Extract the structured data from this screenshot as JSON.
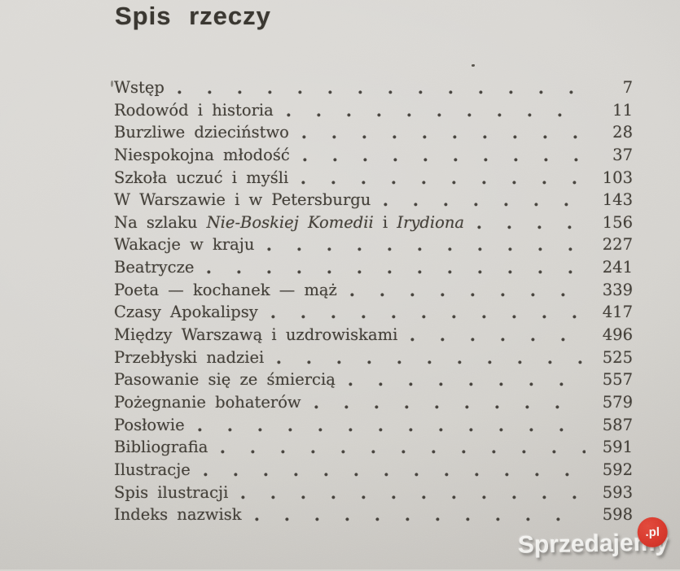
{
  "page": {
    "title": "Spis rzeczy",
    "entries": [
      {
        "label": "Wstęp",
        "page": "7"
      },
      {
        "label": "Rodowód i historia",
        "page": "11"
      },
      {
        "label": "Burzliwe dzieciństwo",
        "page": "28"
      },
      {
        "label": "Niespokojna młodość",
        "page": "37"
      },
      {
        "label": "Szkoła uczuć i myśli",
        "page": "103"
      },
      {
        "label": "W Warszawie i w Petersburgu",
        "page": "143"
      },
      {
        "parts": [
          {
            "text": "Na szlaku ",
            "italic": false
          },
          {
            "text": "Nie-Boskiej Komedii",
            "italic": true
          },
          {
            "text": " i ",
            "italic": false
          },
          {
            "text": "Irydiona",
            "italic": true
          }
        ],
        "page": "156"
      },
      {
        "label": "Wakacje w kraju",
        "page": "227"
      },
      {
        "label": "Beatrycze",
        "page": "241"
      },
      {
        "label": "Poeta — kochanek — mąż",
        "page": "339"
      },
      {
        "label": "Czasy Apokalipsy",
        "page": "417"
      },
      {
        "label": "Między Warszawą i uzdrowiskami",
        "page": "496"
      },
      {
        "label": "Przebłyski nadziei",
        "page": "525"
      },
      {
        "label": "Pasowanie się ze śmiercią",
        "page": "557"
      },
      {
        "label": "Pożegnanie bohaterów",
        "page": "579"
      },
      {
        "label": "Posłowie",
        "page": "587"
      },
      {
        "label": "Bibliografia",
        "page": "591"
      },
      {
        "label": "Ilustracje",
        "page": "592"
      },
      {
        "label": "Spis ilustracji",
        "page": "593"
      },
      {
        "label": "Indeks nazwisk",
        "page": "598"
      }
    ]
  },
  "watermark": {
    "text": "Sprzedajemy",
    "suffix": ".pl",
    "badge_color": "#d63529"
  },
  "colors": {
    "paper": "#d6d4d0",
    "ink": "#403c35",
    "watermark_text": "#faf8f6"
  }
}
